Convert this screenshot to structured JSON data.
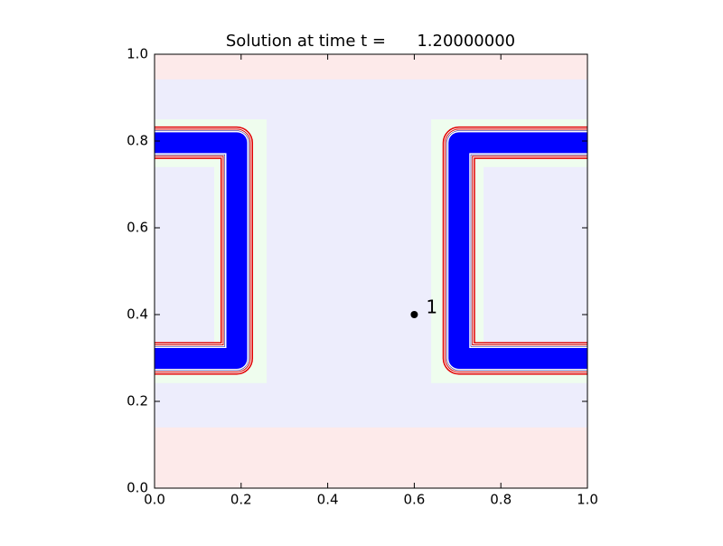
{
  "chart_data": {
    "type": "contour",
    "title": "Solution at time t =      1.20000000",
    "xlim": [
      0,
      1
    ],
    "ylim": [
      0,
      1
    ],
    "xticks": [
      {
        "value": 0,
        "label": "0.0"
      },
      0.2,
      0.4,
      0.6,
      0.8,
      {
        "value": 1,
        "label": "1.0"
      }
    ],
    "yticks": [
      {
        "value": 0,
        "label": "0.0"
      },
      0.2,
      0.4,
      0.6,
      0.8,
      {
        "value": 1,
        "label": "1.0"
      }
    ],
    "regions": [
      {
        "x": [
          0,
          1
        ],
        "y": [
          0,
          1
        ],
        "color": "#fdeaea"
      },
      {
        "x": [
          0,
          1
        ],
        "y": [
          0.14,
          0.942
        ],
        "color": "#ededfc"
      },
      {
        "x": [
          0,
          0.259
        ],
        "y": [
          0.242,
          0.85
        ],
        "color": "#effdee"
      },
      {
        "x": [
          0.639,
          1
        ],
        "y": [
          0.242,
          0.85
        ],
        "color": "#effdee"
      },
      {
        "x": [
          0,
          0.138
        ],
        "y": [
          0.33,
          0.74
        ],
        "color": "#ededfc"
      },
      {
        "x": [
          0.76,
          1
        ],
        "y": [
          0.33,
          0.74
        ],
        "color": "#ededfc"
      }
    ],
    "pipes": [
      {
        "x": [
          0,
          0.19,
          0.19,
          0
        ],
        "y": [
          0.796,
          0.796,
          0.299,
          0.299
        ],
        "color": "#0000ff"
      },
      {
        "x": [
          1,
          0.703,
          0.703,
          1
        ],
        "y": [
          0.796,
          0.796,
          0.299,
          0.299
        ],
        "color": "#0000ff"
      }
    ],
    "gauges": [
      {
        "x": 0.6,
        "y": 0.4,
        "label": "1"
      }
    ]
  }
}
